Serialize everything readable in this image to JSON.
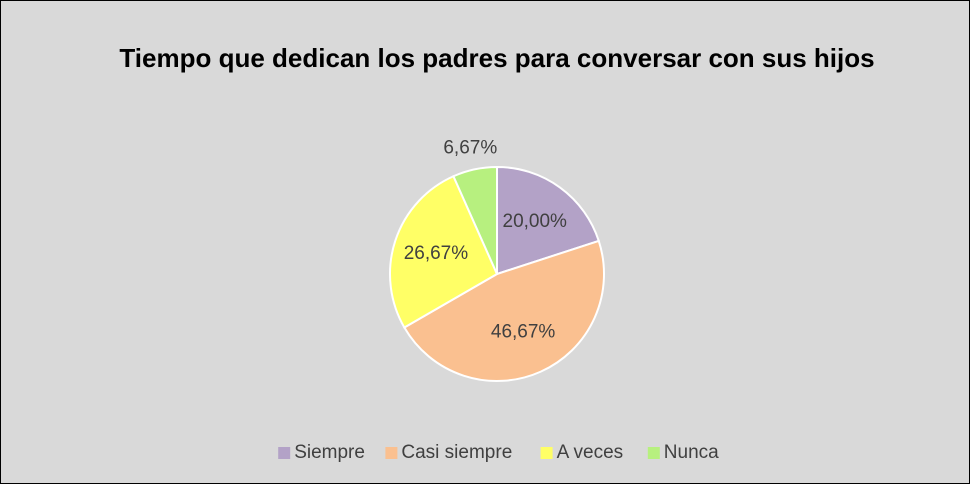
{
  "chart_data": {
    "type": "pie",
    "title": "Tiempo que dedican los padres para conversar con sus hijos",
    "categories": [
      "Siempre",
      "Casi siempre",
      "A veces",
      "Nunca"
    ],
    "values": [
      20,
      46.67,
      26.67,
      6.67
    ],
    "value_labels": [
      "20,00%",
      "46,67%",
      "26,67%",
      "6,67%"
    ],
    "colors": [
      "#b3a2c7",
      "#fac090",
      "#ffff66",
      "#b7f07f"
    ],
    "legend": "bottom"
  }
}
